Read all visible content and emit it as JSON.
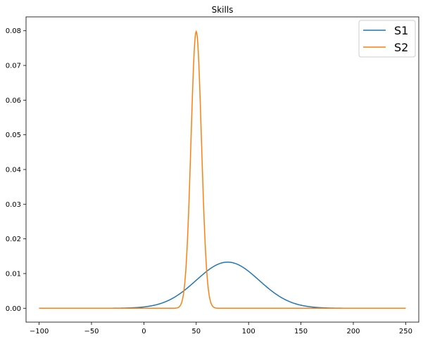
{
  "chart_data": {
    "type": "line",
    "title": "Skills",
    "xlabel": "",
    "ylabel": "",
    "xlim": [
      -112.5,
      262.5
    ],
    "ylim": [
      -0.004,
      0.084
    ],
    "x_ticks": [
      -100,
      -50,
      0,
      50,
      100,
      150,
      200,
      250
    ],
    "x_tick_labels": [
      "−100",
      "−50",
      "0",
      "50",
      "100",
      "150",
      "200",
      "250"
    ],
    "y_ticks": [
      0.0,
      0.01,
      0.02,
      0.03,
      0.04,
      0.05,
      0.06,
      0.07,
      0.08
    ],
    "y_tick_labels": [
      "0.00",
      "0.01",
      "0.02",
      "0.03",
      "0.04",
      "0.05",
      "0.06",
      "0.07",
      "0.08"
    ],
    "grid": false,
    "legend_position": "top-right",
    "series": [
      {
        "name": "S1",
        "color": "#1f77b4",
        "distribution": "normal",
        "mean": 80,
        "std": 30,
        "x_range": [
          -100,
          250
        ]
      },
      {
        "name": "S2",
        "color": "#ff7f0e",
        "distribution": "normal",
        "mean": 50,
        "std": 5,
        "x_range": [
          -100,
          250
        ]
      }
    ]
  }
}
